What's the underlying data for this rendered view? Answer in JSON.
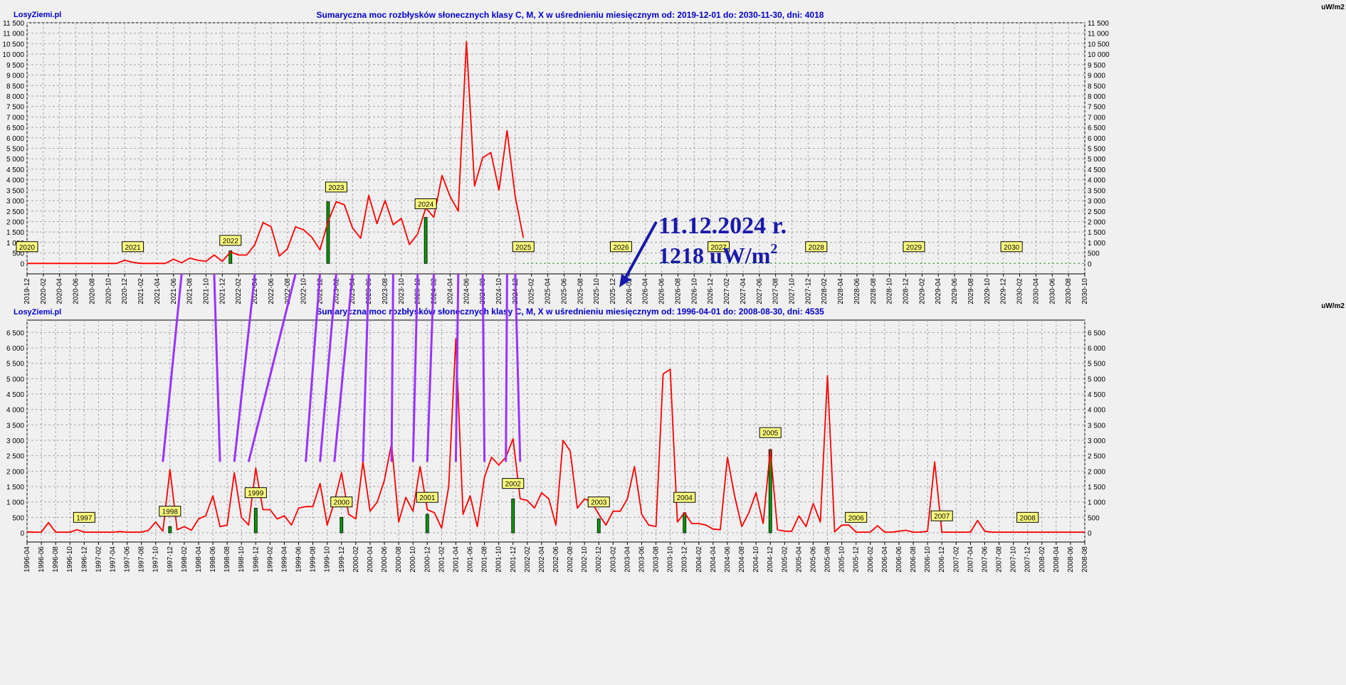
{
  "chart_data": [
    {
      "type": "line",
      "brand": "LosyZiemi.pl",
      "title": "Sumaryczna moc rozbłysków słonecznych klasy C, M, X w uśrednieniu miesięcznym od: 2019-12-01 do: 2030-11-30, dni: 4018",
      "unit": "uW/m2",
      "xlim": [
        "2019-12",
        "2030-10"
      ],
      "ylim": [
        -500,
        11500
      ],
      "y_ticks": [
        "0",
        "500",
        "1 000",
        "1 500",
        "2 000",
        "2 500",
        "3 000",
        "3 500",
        "4 000",
        "4 500",
        "5 000",
        "5 500",
        "6 000",
        "6 500",
        "7 000",
        "7 500",
        "8 000",
        "8 500",
        "9 000",
        "9 500",
        "10 000",
        "10 500",
        "11 000",
        "11 500"
      ],
      "x_tick_labels": [
        "2019-12",
        "2020-02",
        "2020-04",
        "2020-06",
        "2020-08",
        "2020-10",
        "2020-12",
        "2021-02",
        "2021-04",
        "2021-06",
        "2021-08",
        "2021-10",
        "2021-12",
        "2022-02",
        "2022-04",
        "2022-06",
        "2022-08",
        "2022-10",
        "2022-12",
        "2023-02",
        "2023-04",
        "2023-06",
        "2023-08",
        "2023-10",
        "2023-12",
        "2024-02",
        "2024-04",
        "2024-06",
        "2024-08",
        "2024-10",
        "2024-12",
        "2025-02",
        "2025-04",
        "2025-06",
        "2025-08",
        "2025-10",
        "2025-12",
        "2026-02",
        "2026-04",
        "2026-06",
        "2026-08",
        "2026-10",
        "2026-12",
        "2027-02",
        "2027-04",
        "2027-06",
        "2027-08",
        "2027-10",
        "2027-12",
        "2028-02",
        "2028-04",
        "2028-06",
        "2028-08",
        "2028-10",
        "2028-12",
        "2029-02",
        "2029-04",
        "2029-06",
        "2029-08",
        "2029-10",
        "2029-12",
        "2030-02",
        "2030-04",
        "2030-06",
        "2030-08",
        "2030-10"
      ],
      "grid": true,
      "series": [
        {
          "color": "#ff0000",
          "values": [
            0,
            0,
            0,
            0,
            0,
            0,
            0,
            0,
            0,
            0,
            0,
            0,
            150,
            50,
            0,
            0,
            0,
            0,
            200,
            30,
            250,
            150,
            100,
            400,
            100,
            550,
            400,
            400,
            900,
            1950,
            1750,
            350,
            700,
            1750,
            1600,
            1250,
            650,
            2000,
            2950,
            2800,
            1700,
            1200,
            3250,
            1900,
            3000,
            1850,
            2150,
            900,
            1400,
            2650,
            2200,
            4200,
            3200,
            2500,
            10600,
            3700,
            5050,
            5300,
            3500,
            6350,
            3200,
            1218
          ]
        }
      ],
      "zero_dots_from": "2025-01",
      "year_markers": [
        {
          "label": "2020",
          "x": "2019-12",
          "y": 800
        },
        {
          "label": "2021",
          "x": "2021-01",
          "y": 800
        },
        {
          "label": "2022",
          "x": "2022-01",
          "y": 1100
        },
        {
          "label": "2023",
          "x": "2023-02",
          "y": 3650
        },
        {
          "label": "2024",
          "x": "2024-01",
          "y": 2850
        },
        {
          "label": "2025",
          "x": "2025-01",
          "y": 800
        },
        {
          "label": "2026",
          "x": "2026-01",
          "y": 800
        },
        {
          "label": "2027",
          "x": "2027-01",
          "y": 800
        },
        {
          "label": "2028",
          "x": "2028-01",
          "y": 800
        },
        {
          "label": "2029",
          "x": "2029-01",
          "y": 800
        },
        {
          "label": "2030",
          "x": "2030-01",
          "y": 800
        }
      ],
      "green_bars": [
        {
          "x": "2022-01",
          "value": 600
        },
        {
          "x": "2023-01",
          "value": 2950
        },
        {
          "x": "2024-01",
          "value": 2200
        }
      ],
      "annotation": {
        "line1": "11.12.2024 r.",
        "line2_value": "1218 uW/m",
        "line2_sup": "2",
        "color": "#1a1aaa"
      }
    },
    {
      "type": "line",
      "brand": "LosyZiemi.pl",
      "title": "Sumaryczna moc rozbłysków słonecznych klasy C, M, X w uśrednieniu miesięcznym od: 1996-04-01 do: 2008-08-30, dni: 4535",
      "unit": "uW/m2",
      "xlim": [
        "1996-04",
        "2008-08"
      ],
      "ylim": [
        -300,
        6900
      ],
      "y_ticks": [
        "0",
        "500",
        "1 000",
        "1 500",
        "2 000",
        "2 500",
        "3 000",
        "3 500",
        "4 000",
        "4 500",
        "5 000",
        "5 500",
        "6 000",
        "6 500"
      ],
      "x_tick_labels": [
        "1996-04",
        "1996-06",
        "1996-08",
        "1996-10",
        "1996-12",
        "1997-02",
        "1997-04",
        "1997-06",
        "1997-08",
        "1997-10",
        "1997-12",
        "1998-02",
        "1998-04",
        "1998-06",
        "1998-08",
        "1998-10",
        "1998-12",
        "1999-02",
        "1999-04",
        "1999-06",
        "1999-08",
        "1999-10",
        "1999-12",
        "2000-02",
        "2000-04",
        "2000-06",
        "2000-08",
        "2000-10",
        "2000-12",
        "2001-02",
        "2001-04",
        "2001-06",
        "2001-08",
        "2001-10",
        "2001-12",
        "2002-02",
        "2002-04",
        "2002-06",
        "2002-08",
        "2002-10",
        "2002-12",
        "2003-02",
        "2003-04",
        "2003-06",
        "2003-08",
        "2003-10",
        "2003-12",
        "2004-02",
        "2004-04",
        "2004-06",
        "2004-08",
        "2004-10",
        "2004-12",
        "2005-02",
        "2005-04",
        "2005-06",
        "2005-08",
        "2005-10",
        "2005-12",
        "2006-02",
        "2006-04",
        "2006-06",
        "2006-08",
        "2006-10",
        "2006-12",
        "2007-02",
        "2007-04",
        "2007-06",
        "2007-08",
        "2007-10",
        "2007-12",
        "2008-02",
        "2008-04",
        "2008-06",
        "2008-08"
      ],
      "grid": true,
      "series": [
        {
          "color": "#ff0000",
          "values": [
            30,
            20,
            20,
            330,
            20,
            20,
            20,
            100,
            20,
            20,
            20,
            20,
            20,
            40,
            20,
            20,
            20,
            80,
            350,
            50,
            2050,
            100,
            200,
            80,
            450,
            550,
            1200,
            200,
            250,
            1950,
            500,
            250,
            2100,
            750,
            750,
            450,
            550,
            250,
            800,
            850,
            850,
            1600,
            250,
            1000,
            1950,
            600,
            450,
            2300,
            700,
            1000,
            1700,
            2900,
            350,
            1150,
            700,
            2150,
            750,
            650,
            150,
            1500,
            6300,
            600,
            1200,
            200,
            1800,
            2450,
            2200,
            2450,
            3050,
            1100,
            1050,
            800,
            1300,
            1100,
            250,
            3000,
            2650,
            800,
            1100,
            1000,
            600,
            250,
            700,
            700,
            1100,
            2150,
            600,
            250,
            200,
            5150,
            5300,
            350,
            650,
            300,
            300,
            250,
            120,
            100,
            2450,
            1200,
            200,
            650,
            1300,
            300,
            2700,
            100,
            50,
            50,
            550,
            200,
            950,
            350,
            5100,
            30,
            250,
            250,
            20,
            20,
            20,
            230,
            20,
            20,
            50,
            80,
            20,
            20,
            50,
            2300,
            20,
            20,
            20,
            20,
            20,
            400,
            50,
            20,
            20,
            20,
            20,
            20,
            20,
            20,
            20,
            20,
            20,
            20,
            20,
            20,
            20
          ]
        }
      ],
      "year_markers": [
        {
          "label": "1997",
          "x": "1996-12",
          "y": 500
        },
        {
          "label": "1998",
          "x": "1997-12",
          "y": 700
        },
        {
          "label": "1999",
          "x": "1998-12",
          "y": 1300
        },
        {
          "label": "2000",
          "x": "1999-12",
          "y": 1000
        },
        {
          "label": "2001",
          "x": "2000-12",
          "y": 1150
        },
        {
          "label": "2002",
          "x": "2001-12",
          "y": 1600
        },
        {
          "label": "2003",
          "x": "2002-12",
          "y": 1000
        },
        {
          "label": "2004",
          "x": "2003-12",
          "y": 1150
        },
        {
          "label": "2005",
          "x": "2004-12",
          "y": 3250
        },
        {
          "label": "2006",
          "x": "2005-12",
          "y": 500
        },
        {
          "label": "2007",
          "x": "2006-12",
          "y": 550
        },
        {
          "label": "2008",
          "x": "2007-12",
          "y": 500
        }
      ],
      "green_bars": [
        {
          "x": "1997-12",
          "value": 200
        },
        {
          "x": "1998-12",
          "value": 800
        },
        {
          "x": "1999-12",
          "value": 500
        },
        {
          "x": "2000-12",
          "value": 600
        },
        {
          "x": "2001-12",
          "value": 1100
        },
        {
          "x": "2002-12",
          "value": 450
        },
        {
          "x": "2003-12",
          "value": 650
        },
        {
          "x": "2004-12",
          "value": 2700
        }
      ]
    }
  ],
  "connectors": [
    {
      "top": "2021-07",
      "bottom": "1997-11"
    },
    {
      "top": "2021-11",
      "bottom": "1998-07"
    },
    {
      "top": "2022-04",
      "bottom": "1998-09"
    },
    {
      "top": "2022-09",
      "bottom": "1998-11"
    },
    {
      "top": "2022-12",
      "bottom": "1999-07"
    },
    {
      "top": "2023-02",
      "bottom": "1999-09"
    },
    {
      "top": "2023-04",
      "bottom": "1999-11"
    },
    {
      "top": "2023-06",
      "bottom": "2000-03"
    },
    {
      "top": "2023-09",
      "bottom": "2000-07"
    },
    {
      "top": "2023-12",
      "bottom": "2000-10"
    },
    {
      "top": "2024-02",
      "bottom": "2000-12"
    },
    {
      "top": "2024-05",
      "bottom": "2001-04"
    },
    {
      "top": "2024-08",
      "bottom": "2001-08"
    },
    {
      "top": "2024-11",
      "bottom": "2001-11"
    },
    {
      "top": "2024-12",
      "bottom": "2002-01"
    }
  ],
  "colors": {
    "background": "#f0f0f0",
    "line": "#ff0000",
    "marker_fill": "#ffff80",
    "connector": "#9933ff",
    "green_bar": "#009900",
    "grid": "#a8a8a8",
    "brand": "#0000cc",
    "title": "#0000cc",
    "annotation": "#1a1aaa"
  }
}
